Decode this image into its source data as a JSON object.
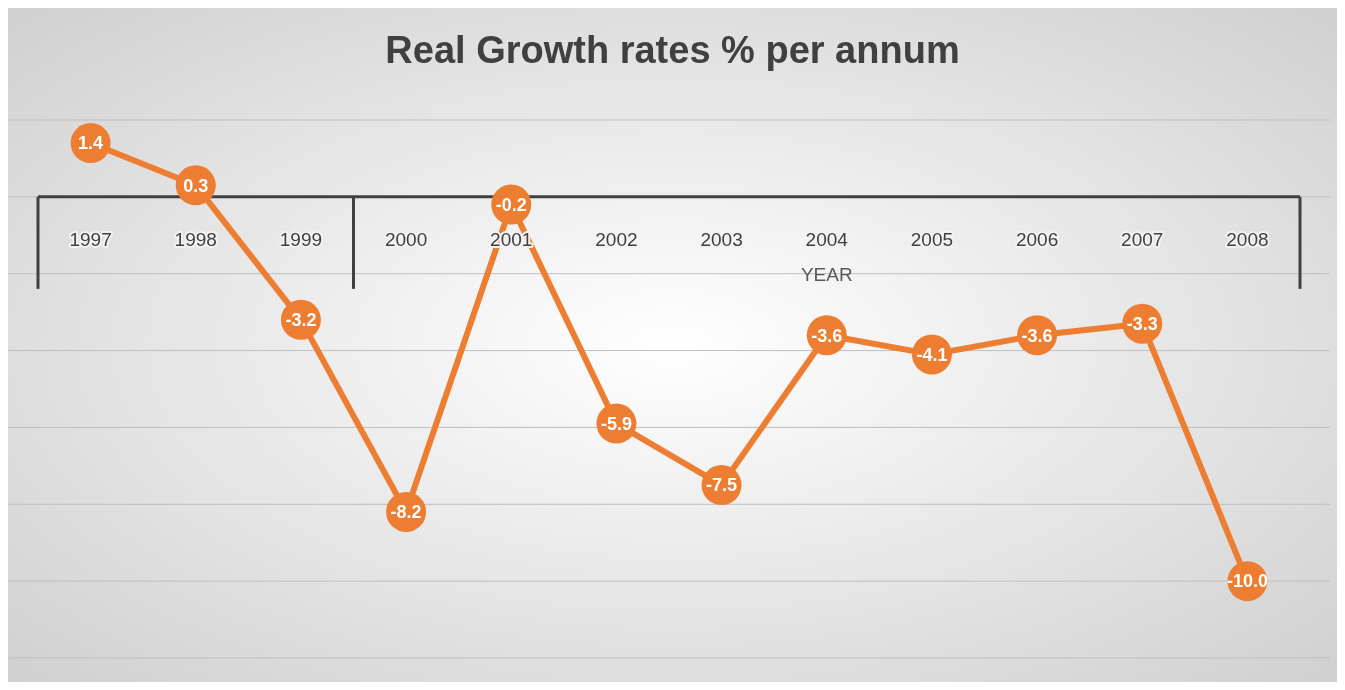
{
  "chart_data": {
    "type": "line",
    "title": "Real Growth rates % per annum",
    "xlabel": "YEAR",
    "categories": [
      "1997",
      "1998",
      "1999",
      "2000",
      "2001",
      "2002",
      "2003",
      "2004",
      "2005",
      "2006",
      "2007",
      "2008"
    ],
    "series": [
      {
        "color": "#ed7d31",
        "values": [
          1.4,
          0.3,
          -3.2,
          -8.2,
          -0.2,
          -5.9,
          -7.5,
          -3.6,
          -4.1,
          -3.6,
          -3.3,
          -10.0
        ],
        "value_labels": [
          "1.4",
          "0.3",
          "-3.2",
          "-8.2",
          "-0.2",
          "-5.9",
          "-7.5",
          "-3.6",
          "-4.1",
          "-3.6",
          "-3.3",
          "-10.0"
        ]
      }
    ],
    "ylim": [
      -12,
      2
    ],
    "yticks": [
      {
        "value": -12,
        "label": null
      },
      {
        "value": -10,
        "label": null
      },
      {
        "value": -8,
        "label": null
      },
      {
        "value": -6,
        "label": null
      },
      {
        "value": -4,
        "label": null
      },
      {
        "value": -2,
        "label": null
      },
      {
        "value": 0,
        "label": null
      },
      {
        "value": 2,
        "label": null
      }
    ],
    "grid": "y",
    "tick_labels": "x",
    "marker": "circle",
    "line_style": "solid"
  }
}
